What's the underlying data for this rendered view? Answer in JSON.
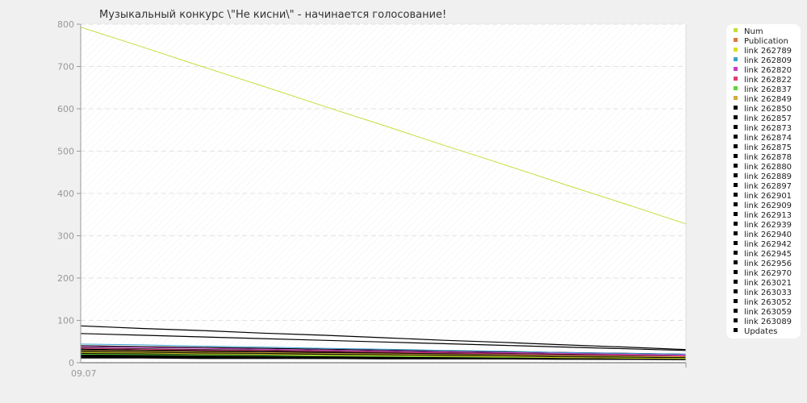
{
  "chart_data": {
    "type": "line",
    "title": "Музыкальный конкурс \\\"Не кисни\\\" - начинается голосование!",
    "xlabel": "",
    "ylabel": "",
    "x_tick_labels": [
      "09.07"
    ],
    "ylim": [
      0,
      800
    ],
    "y_ticks": [
      0,
      100,
      200,
      300,
      400,
      500,
      600,
      700,
      800
    ],
    "grid": true,
    "legend_position": "right",
    "x": [
      0,
      1,
      2,
      3,
      4,
      5,
      6,
      7,
      8,
      9,
      10
    ],
    "series": [
      {
        "name": "Num",
        "color": "#c8dc3c",
        "values": [
          793,
          747,
          700,
          654,
          607,
          561,
          514,
          468,
          421,
          375,
          328
        ]
      },
      {
        "name": "Publication",
        "color": "#e0783c",
        "values": [
          0,
          0,
          0,
          0,
          0,
          0,
          0,
          0,
          0,
          0,
          0
        ]
      },
      {
        "name": "link 262789",
        "color": "#dcdc28",
        "values": [
          24,
          23,
          21,
          20,
          18,
          17,
          15,
          14,
          12,
          11,
          10
        ]
      },
      {
        "name": "link 262809",
        "color": "#3ca0d2",
        "values": [
          44,
          42,
          39,
          37,
          34,
          32,
          29,
          27,
          24,
          22,
          20
        ]
      },
      {
        "name": "link 262820",
        "color": "#c83cc8",
        "values": [
          38,
          36,
          34,
          32,
          30,
          28,
          26,
          24,
          22,
          20,
          18
        ]
      },
      {
        "name": "link 262822",
        "color": "#dc3c78",
        "values": [
          34,
          32,
          30,
          29,
          27,
          25,
          23,
          21,
          19,
          18,
          16
        ]
      },
      {
        "name": "link 262837",
        "color": "#64d23c",
        "values": [
          20,
          19,
          18,
          17,
          16,
          15,
          14,
          13,
          12,
          11,
          10
        ]
      },
      {
        "name": "link 262849",
        "color": "#d2aa3c",
        "values": [
          28,
          27,
          25,
          24,
          22,
          21,
          19,
          18,
          16,
          15,
          14
        ]
      },
      {
        "name": "link 262850",
        "color": "#000000",
        "values": [
          87,
          81,
          76,
          70,
          65,
          59,
          53,
          48,
          42,
          37,
          31
        ]
      },
      {
        "name": "link 262857",
        "color": "#000000",
        "values": [
          69,
          65,
          61,
          57,
          53,
          49,
          45,
          41,
          37,
          33,
          29
        ]
      },
      {
        "name": "link 262873",
        "color": "#000000",
        "values": [
          40,
          38,
          36,
          34,
          32,
          30,
          28,
          26,
          24,
          22,
          20
        ]
      },
      {
        "name": "link 262874",
        "color": "#000000",
        "values": [
          35,
          33,
          31,
          30,
          28,
          26,
          24,
          22,
          20,
          19,
          17
        ]
      },
      {
        "name": "link 262875",
        "color": "#000000",
        "values": [
          32,
          30,
          29,
          27,
          26,
          24,
          22,
          21,
          19,
          18,
          16
        ]
      },
      {
        "name": "link 262878",
        "color": "#000000",
        "values": [
          30,
          28,
          27,
          26,
          24,
          23,
          21,
          20,
          18,
          17,
          15
        ]
      },
      {
        "name": "link 262880",
        "color": "#000000",
        "values": [
          28,
          27,
          26,
          24,
          23,
          22,
          20,
          19,
          18,
          16,
          15
        ]
      },
      {
        "name": "link 262889",
        "color": "#000000",
        "values": [
          26,
          25,
          24,
          23,
          22,
          20,
          19,
          18,
          17,
          16,
          14
        ]
      },
      {
        "name": "link 262897",
        "color": "#000000",
        "values": [
          25,
          24,
          23,
          22,
          21,
          20,
          18,
          17,
          16,
          15,
          14
        ]
      },
      {
        "name": "link 262901",
        "color": "#000000",
        "values": [
          24,
          23,
          22,
          21,
          20,
          19,
          17,
          16,
          15,
          14,
          13
        ]
      },
      {
        "name": "link 262909",
        "color": "#000000",
        "values": [
          23,
          22,
          21,
          20,
          19,
          18,
          17,
          16,
          15,
          14,
          13
        ]
      },
      {
        "name": "link 262913",
        "color": "#000000",
        "values": [
          22,
          21,
          20,
          19,
          18,
          17,
          16,
          15,
          14,
          13,
          12
        ]
      },
      {
        "name": "link 262939",
        "color": "#000000",
        "values": [
          21,
          20,
          19,
          18,
          17,
          16,
          15,
          14,
          13,
          12,
          12
        ]
      },
      {
        "name": "link 262940",
        "color": "#000000",
        "values": [
          20,
          19,
          18,
          17,
          17,
          16,
          15,
          14,
          13,
          12,
          11
        ]
      },
      {
        "name": "link 262942",
        "color": "#000000",
        "values": [
          19,
          18,
          18,
          17,
          16,
          15,
          14,
          13,
          12,
          12,
          11
        ]
      },
      {
        "name": "link 262945",
        "color": "#000000",
        "values": [
          18,
          17,
          17,
          16,
          15,
          14,
          14,
          13,
          12,
          11,
          10
        ]
      },
      {
        "name": "link 262956",
        "color": "#000000",
        "values": [
          17,
          16,
          16,
          15,
          14,
          14,
          13,
          12,
          11,
          11,
          10
        ]
      },
      {
        "name": "link 262970",
        "color": "#000000",
        "values": [
          16,
          15,
          15,
          14,
          14,
          13,
          12,
          12,
          11,
          10,
          10
        ]
      },
      {
        "name": "link 263021",
        "color": "#000000",
        "values": [
          15,
          14,
          14,
          13,
          13,
          12,
          12,
          11,
          10,
          10,
          9
        ]
      },
      {
        "name": "link 263033",
        "color": "#000000",
        "values": [
          14,
          13,
          13,
          12,
          12,
          11,
          11,
          10,
          10,
          9,
          9
        ]
      },
      {
        "name": "link 263052",
        "color": "#000000",
        "values": [
          13,
          12,
          12,
          12,
          11,
          11,
          10,
          10,
          9,
          9,
          8
        ]
      },
      {
        "name": "link 263059",
        "color": "#000000",
        "values": [
          12,
          12,
          11,
          11,
          10,
          10,
          10,
          9,
          9,
          8,
          8
        ]
      },
      {
        "name": "link 263089",
        "color": "#000000",
        "values": [
          11,
          11,
          10,
          10,
          10,
          9,
          9,
          9,
          8,
          8,
          7
        ]
      },
      {
        "name": "Updates",
        "color": "#000000",
        "values": [
          0,
          0,
          0,
          0,
          0,
          0,
          0,
          0,
          0,
          0,
          0
        ]
      }
    ]
  }
}
